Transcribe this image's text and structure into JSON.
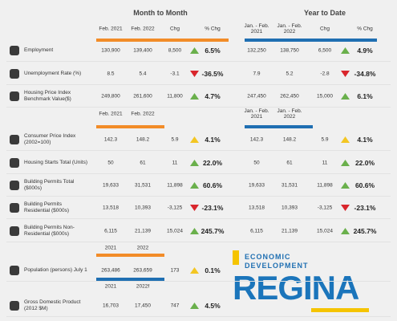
{
  "header": {
    "month_to_month": "Month to Month",
    "year_to_date": "Year to Date"
  },
  "sections": [
    {
      "mtm_columns": [
        "Feb. 2021",
        "Feb. 2022",
        "Chg",
        "% Chg"
      ],
      "ytd_columns": [
        "Jan. - Feb. 2021",
        "Jan. - Feb. 2022",
        "Chg",
        "% Chg"
      ],
      "rows": [
        {
          "label": "Employment",
          "mtm": [
            "130,900",
            "139,400",
            "8,500",
            "6.5%"
          ],
          "mtm_trend": "up",
          "ytd": [
            "132,250",
            "138,750",
            "6,500",
            "4.9%"
          ],
          "ytd_trend": "up"
        },
        {
          "label": "Unemployment Rate (%)",
          "mtm": [
            "8.5",
            "5.4",
            "-3.1",
            "-36.5%"
          ],
          "mtm_trend": "down",
          "ytd": [
            "7.9",
            "5.2",
            "-2.8",
            "-34.8%"
          ],
          "ytd_trend": "down"
        },
        {
          "label": "Housing Price Index Benchmark Value($)",
          "mtm": [
            "249,800",
            "261,600",
            "11,800",
            "4.7%"
          ],
          "mtm_trend": "up",
          "ytd": [
            "247,450",
            "262,450",
            "15,000",
            "6.1%"
          ],
          "ytd_trend": "up"
        }
      ]
    },
    {
      "mtm_columns": [
        "Feb. 2021",
        "Feb. 2022"
      ],
      "ytd_columns": [
        "Jan. - Feb. 2021",
        "Jan. - Feb. 2022"
      ],
      "rows": [
        {
          "label": "Consumer Price Index (2002=100)",
          "mtm": [
            "142.3",
            "148.2",
            "5.9",
            "4.1%"
          ],
          "mtm_trend": "neutral",
          "ytd": [
            "142.3",
            "148.2",
            "5.9",
            "4.1%"
          ],
          "ytd_trend": "neutral"
        },
        {
          "label": "Housing Starts Total (Units)",
          "mtm": [
            "50",
            "61",
            "11",
            "22.0%"
          ],
          "mtm_trend": "up",
          "ytd": [
            "50",
            "61",
            "11",
            "22.0%"
          ],
          "ytd_trend": "up"
        },
        {
          "label": "Building Permits Total ($000s)",
          "mtm": [
            "19,633",
            "31,531",
            "11,898",
            "60.6%"
          ],
          "mtm_trend": "up",
          "ytd": [
            "19,633",
            "31,531",
            "11,898",
            "60.6%"
          ],
          "ytd_trend": "up"
        },
        {
          "label": "Building Permits Residential ($000s)",
          "mtm": [
            "13,518",
            "10,393",
            "-3,125",
            "-23.1%"
          ],
          "mtm_trend": "down",
          "ytd": [
            "13,518",
            "10,393",
            "-3,125",
            "-23.1%"
          ],
          "ytd_trend": "down"
        },
        {
          "label": "Building Permits Non-Residential ($000s)",
          "mtm": [
            "6,115",
            "21,139",
            "15,024",
            "245.7%"
          ],
          "mtm_trend": "up",
          "ytd": [
            "6,115",
            "21,139",
            "15,024",
            "245.7%"
          ],
          "ytd_trend": "up"
        }
      ]
    },
    {
      "mtm_columns": [
        "2021",
        "2022"
      ],
      "rows": [
        {
          "label": "Population (persons) July 1",
          "mtm": [
            "263,486",
            "263,659",
            "173",
            "0.1%"
          ],
          "mtm_trend": "neutral"
        }
      ]
    },
    {
      "mtm_columns": [
        "2021",
        "2022f"
      ],
      "rows": [
        {
          "label": "Gross Domestic Product (2012 $M)",
          "mtm": [
            "16,703",
            "17,450",
            "747",
            "4.5%"
          ],
          "mtm_trend": "up"
        }
      ]
    }
  ],
  "logo": {
    "line1": "ECONOMIC",
    "line2": "DEVELOPMENT",
    "name": "REGINA"
  }
}
